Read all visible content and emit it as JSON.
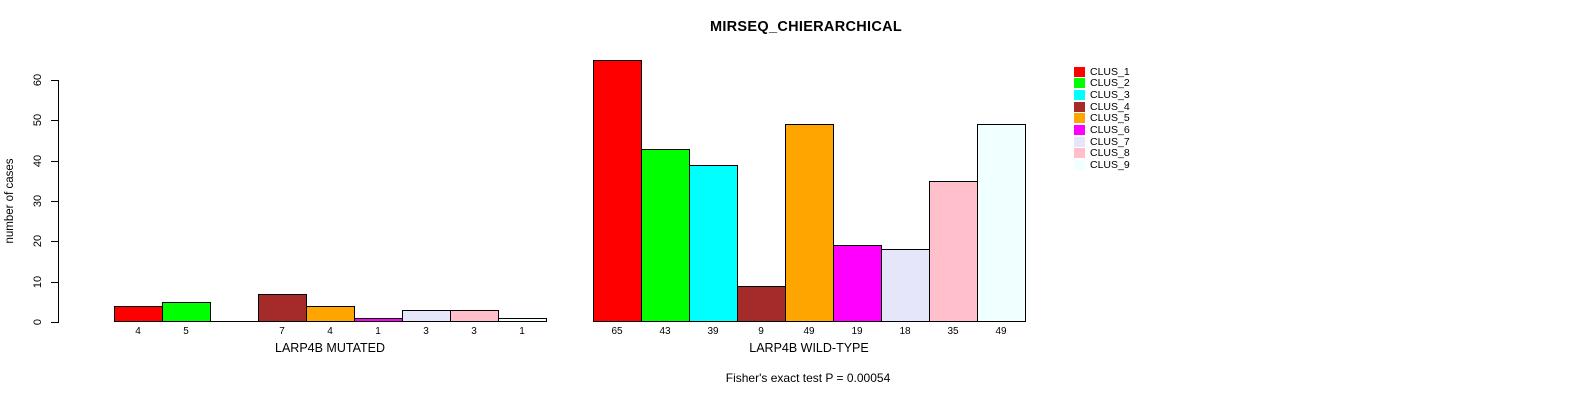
{
  "page": {
    "background": "#ffffff"
  },
  "chart_data": {
    "type": "bar",
    "title": "MIRSEQ_CHIERARCHICAL",
    "ylabel": "number of cases",
    "xlabel": "",
    "ylim": [
      0,
      60
    ],
    "yticks": [
      0,
      10,
      20,
      30,
      40,
      50,
      60
    ],
    "grid": false,
    "legend_position": "top-right",
    "categories": [
      "CLUS_1",
      "CLUS_2",
      "CLUS_3",
      "CLUS_4",
      "CLUS_5",
      "CLUS_6",
      "CLUS_7",
      "CLUS_8",
      "CLUS_9"
    ],
    "colors": [
      "#FF0000",
      "#00FF00",
      "#00FFFF",
      "#A52A2A",
      "#FFA500",
      "#FF00FF",
      "#E6E6FA",
      "#FFC0CB",
      "#F0FFFF"
    ],
    "bar_border_color": "#000000",
    "groups": [
      {
        "label": "LARP4B MUTATED",
        "values": [
          4,
          5,
          0,
          7,
          4,
          1,
          3,
          3,
          1
        ]
      },
      {
        "label": "LARP4B WILD-TYPE",
        "values": [
          65,
          43,
          39,
          9,
          49,
          19,
          18,
          35,
          49
        ]
      }
    ],
    "bar_value_labels": {
      "group_0": [
        "4",
        "5",
        "",
        "7",
        "4",
        "1",
        "3",
        "3",
        "1"
      ],
      "group_1": [
        "65",
        "43",
        "39",
        "9",
        "49",
        "19",
        "18",
        "35",
        "49"
      ]
    },
    "annotation": "Fisher's exact test P = 0.00054"
  }
}
